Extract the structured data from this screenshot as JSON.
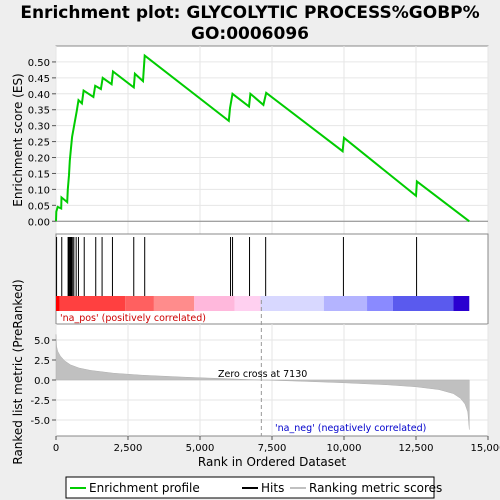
{
  "chart_data": {
    "type": "line",
    "title_line1": "Enrichment plot: GLYCOLYTIC PROCESS%GOBP%",
    "title_line2": "GO:0006096",
    "top_panel": {
      "ylabel": "Enrichment score (ES)",
      "ylim": [
        -0.04,
        0.55
      ],
      "yticks": [
        0.0,
        0.05,
        0.1,
        0.15,
        0.2,
        0.25,
        0.3,
        0.35,
        0.4,
        0.45,
        0.5
      ],
      "ytick_labels": [
        "0.00",
        "0.05",
        "0.10",
        "0.15",
        "0.20",
        "0.25",
        "0.30",
        "0.35",
        "0.40",
        "0.45",
        "0.50"
      ],
      "series_color": "#00cc00",
      "es_curve": [
        [
          0,
          0.0
        ],
        [
          10,
          0.03
        ],
        [
          60,
          0.045
        ],
        [
          180,
          0.04
        ],
        [
          190,
          0.075
        ],
        [
          390,
          0.06
        ],
        [
          410,
          0.1
        ],
        [
          450,
          0.145
        ],
        [
          480,
          0.19
        ],
        [
          520,
          0.23
        ],
        [
          560,
          0.265
        ],
        [
          640,
          0.305
        ],
        [
          720,
          0.345
        ],
        [
          780,
          0.38
        ],
        [
          900,
          0.37
        ],
        [
          960,
          0.41
        ],
        [
          1300,
          0.39
        ],
        [
          1360,
          0.425
        ],
        [
          1560,
          0.415
        ],
        [
          1620,
          0.45
        ],
        [
          1930,
          0.43
        ],
        [
          1980,
          0.47
        ],
        [
          2700,
          0.42
        ],
        [
          2740,
          0.463
        ],
        [
          3020,
          0.44
        ],
        [
          3080,
          0.52
        ],
        [
          6000,
          0.315
        ],
        [
          6040,
          0.355
        ],
        [
          6130,
          0.4
        ],
        [
          6700,
          0.36
        ],
        [
          6750,
          0.4
        ],
        [
          7200,
          0.365
        ],
        [
          7300,
          0.403
        ],
        [
          9950,
          0.22
        ],
        [
          10000,
          0.262
        ],
        [
          12500,
          0.08
        ],
        [
          12530,
          0.125
        ],
        [
          14350,
          0.0
        ]
      ]
    },
    "hits": [
      20,
      200,
      420,
      450,
      480,
      500,
      520,
      540,
      580,
      620,
      700,
      780,
      980,
      1380,
      1600,
      1960,
      2700,
      3080,
      6060,
      6130,
      6720,
      7280,
      9980,
      12520
    ],
    "bottom_panel": {
      "ylabel": "Ranked list metric (PreRanked)",
      "ylim": [
        -7,
        7
      ],
      "yticks": [
        -5.0,
        -2.5,
        0.0,
        2.5,
        5.0
      ],
      "ytick_labels": [
        "-5.0",
        "-2.5",
        "0.0",
        "2.5",
        "5.0"
      ],
      "metric_curve": [
        [
          0,
          5.7
        ],
        [
          20,
          4.2
        ],
        [
          60,
          3.6
        ],
        [
          150,
          3.0
        ],
        [
          300,
          2.4
        ],
        [
          500,
          1.9
        ],
        [
          800,
          1.5
        ],
        [
          1200,
          1.2
        ],
        [
          2000,
          0.85
        ],
        [
          3000,
          0.6
        ],
        [
          4500,
          0.35
        ],
        [
          6000,
          0.15
        ],
        [
          7130,
          0.0
        ],
        [
          8500,
          -0.15
        ],
        [
          10000,
          -0.35
        ],
        [
          11500,
          -0.6
        ],
        [
          12500,
          -0.85
        ],
        [
          13300,
          -1.2
        ],
        [
          13800,
          -1.7
        ],
        [
          14050,
          -2.3
        ],
        [
          14200,
          -3.0
        ],
        [
          14300,
          -4.0
        ],
        [
          14350,
          -6.2
        ]
      ],
      "pos_label": "'na_pos' (positively correlated)",
      "neg_label": "'na_neg' (negatively correlated)",
      "zero_cross_label": "Zero cross at 7130",
      "zero_cross": 7130
    },
    "heatmap_segments": [
      {
        "from": 0,
        "to": 120,
        "color": "#ff0000"
      },
      {
        "from": 120,
        "to": 2400,
        "color": "#ff4040"
      },
      {
        "from": 2400,
        "to": 3400,
        "color": "#ff6060"
      },
      {
        "from": 3400,
        "to": 4800,
        "color": "#ff8c8c"
      },
      {
        "from": 4800,
        "to": 6200,
        "color": "#ffb8dc"
      },
      {
        "from": 6200,
        "to": 7100,
        "color": "#ffd0f0"
      },
      {
        "from": 7100,
        "to": 9300,
        "color": "#d8d8ff"
      },
      {
        "from": 9300,
        "to": 10800,
        "color": "#b4b4ff"
      },
      {
        "from": 10800,
        "to": 11700,
        "color": "#8a8aff"
      },
      {
        "from": 11700,
        "to": 13800,
        "color": "#5a5aee"
      },
      {
        "from": 13800,
        "to": 14350,
        "color": "#2a00d0"
      }
    ],
    "xlabel": "Rank in Ordered Dataset",
    "xlim": [
      0,
      15000
    ],
    "xticks": [
      0,
      2500,
      5000,
      7500,
      10000,
      12500,
      15000
    ],
    "xtick_labels": [
      "0",
      "2,500",
      "5,000",
      "7,500",
      "10,000",
      "12,500",
      "15,000"
    ],
    "legend": {
      "placement": "bottom",
      "entries": [
        "Enrichment profile",
        "Hits",
        "Ranking metric scores"
      ]
    }
  }
}
